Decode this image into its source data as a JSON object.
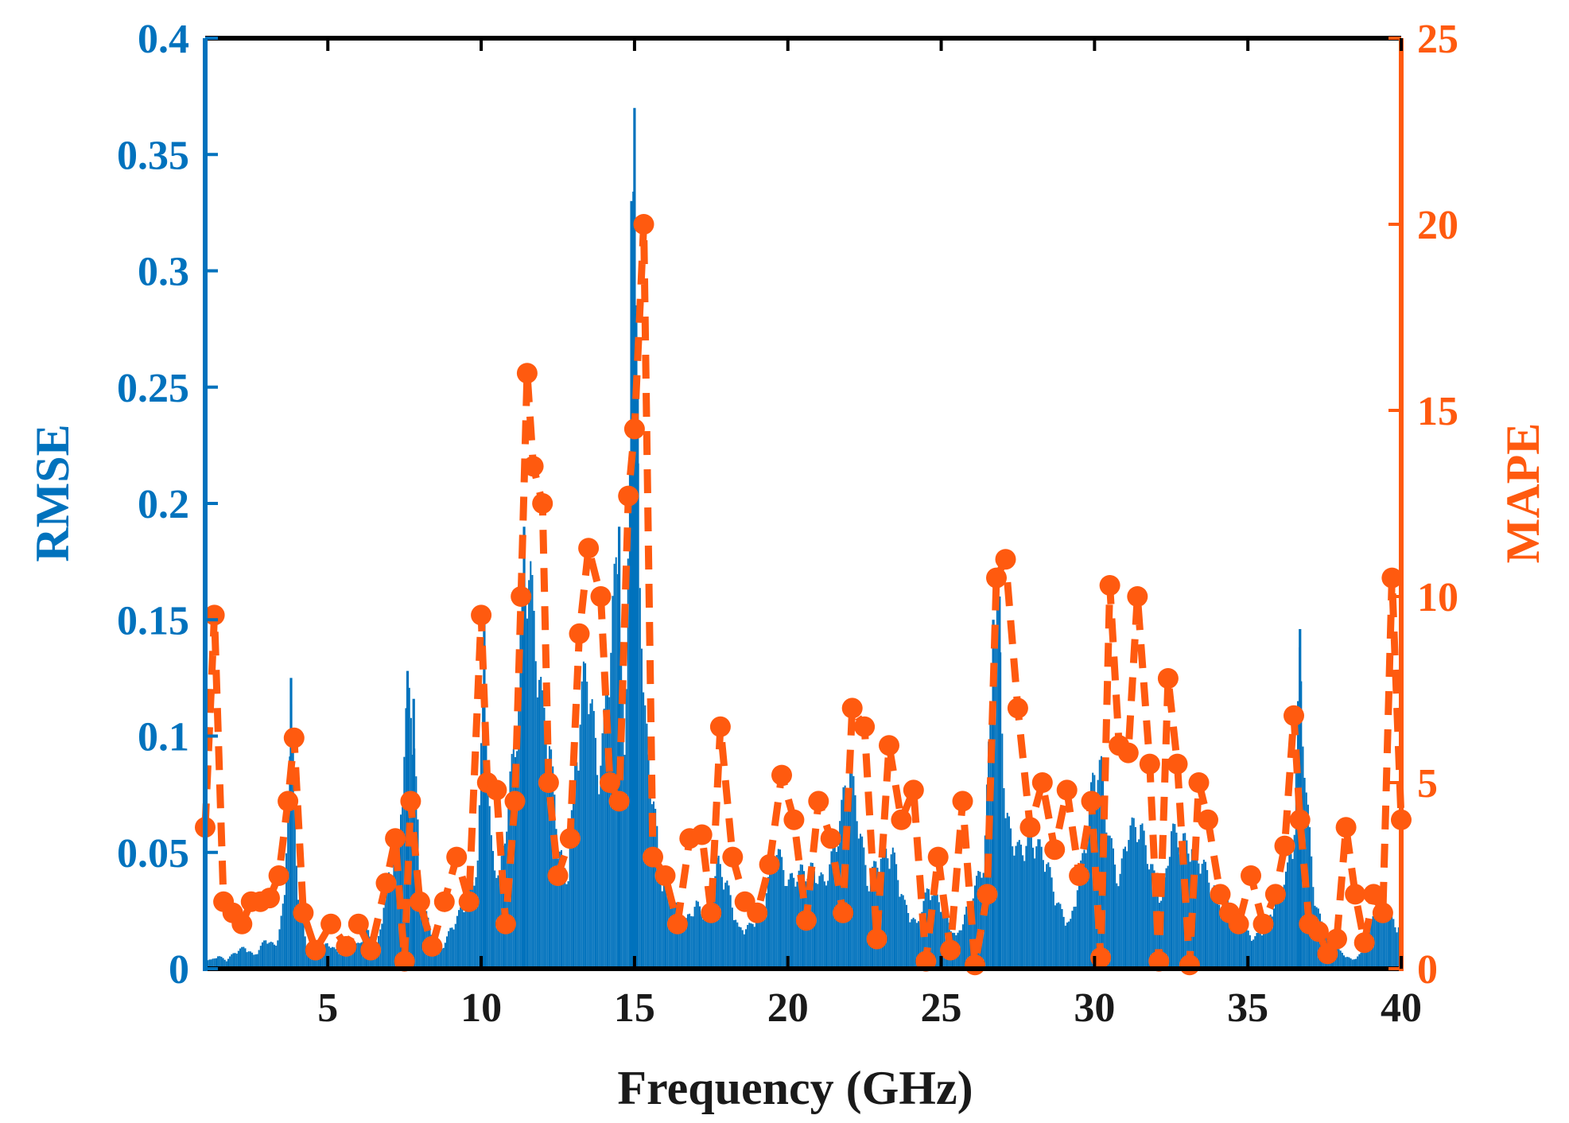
{
  "chart_data": {
    "type": "bar",
    "xlabel": "Frequency (GHz)",
    "ylabel": "RMSE",
    "y2label": "MAPE",
    "xlim": [
      1,
      40
    ],
    "ylim": [
      0,
      0.4
    ],
    "y2lim": [
      0,
      25
    ],
    "xticks": [
      "5",
      "10",
      "15",
      "20",
      "25",
      "30",
      "35",
      "40"
    ],
    "xtick_values": [
      5,
      10,
      15,
      20,
      25,
      30,
      35,
      40
    ],
    "yticks": [
      "0",
      "0.05",
      "0.1",
      "0.15",
      "0.2",
      "0.25",
      "0.3",
      "0.35",
      "0.4"
    ],
    "ytick_values": [
      0,
      0.05,
      0.1,
      0.15,
      0.2,
      0.25,
      0.3,
      0.35,
      0.4
    ],
    "y2ticks": [
      "0",
      "5",
      "10",
      "15",
      "20",
      "25"
    ],
    "y2tick_values": [
      0,
      5,
      10,
      15,
      20,
      25
    ],
    "grid": false,
    "series": [
      {
        "name": "RMSE",
        "kind": "bar",
        "axis": "left",
        "color": "#0072BD",
        "x": [
          1.2,
          1.4,
          1.7,
          2.0,
          2.3,
          2.6,
          3.0,
          3.3,
          3.6,
          3.8,
          4.0,
          4.3,
          4.6,
          5.0,
          5.3,
          5.6,
          6.0,
          6.3,
          6.6,
          7.0,
          7.3,
          7.6,
          7.8,
          8.0,
          8.3,
          8.6,
          9.0,
          9.3,
          9.6,
          9.9,
          10.1,
          10.3,
          10.6,
          10.9,
          11.2,
          11.4,
          11.6,
          11.8,
          12.0,
          12.2,
          12.5,
          12.8,
          13.0,
          13.3,
          13.5,
          13.8,
          14.0,
          14.3,
          14.5,
          14.7,
          14.9,
          15.0,
          15.1,
          15.3,
          15.6,
          15.9,
          16.2,
          16.6,
          17.0,
          17.4,
          17.7,
          18.0,
          18.4,
          18.8,
          19.2,
          19.6,
          20.0,
          20.4,
          20.8,
          21.2,
          21.6,
          22.0,
          22.3,
          22.6,
          23.0,
          23.4,
          23.8,
          24.2,
          24.6,
          25.0,
          25.5,
          26.0,
          26.4,
          26.7,
          26.9,
          27.1,
          27.5,
          28.0,
          28.4,
          28.8,
          29.2,
          29.6,
          30.0,
          30.2,
          30.5,
          30.8,
          31.1,
          31.5,
          31.8,
          32.2,
          32.5,
          32.8,
          33.2,
          33.5,
          33.8,
          34.1,
          34.4,
          34.8,
          35.2,
          35.6,
          36.0,
          36.3,
          36.5,
          36.7,
          36.9,
          37.2,
          37.6,
          38.0,
          38.4,
          38.8,
          39.2,
          39.5,
          39.8
        ],
        "values": [
          0.004,
          0.006,
          0.004,
          0.008,
          0.01,
          0.006,
          0.014,
          0.01,
          0.033,
          0.125,
          0.04,
          0.01,
          0.006,
          0.012,
          0.008,
          0.006,
          0.012,
          0.018,
          0.01,
          0.044,
          0.056,
          0.128,
          0.116,
          0.04,
          0.02,
          0.006,
          0.018,
          0.026,
          0.034,
          0.05,
          0.148,
          0.06,
          0.04,
          0.08,
          0.118,
          0.19,
          0.18,
          0.15,
          0.12,
          0.11,
          0.06,
          0.04,
          0.08,
          0.13,
          0.14,
          0.09,
          0.11,
          0.17,
          0.19,
          0.08,
          0.33,
          0.37,
          0.25,
          0.12,
          0.08,
          0.04,
          0.034,
          0.02,
          0.03,
          0.024,
          0.05,
          0.04,
          0.018,
          0.02,
          0.03,
          0.058,
          0.04,
          0.045,
          0.046,
          0.04,
          0.06,
          0.095,
          0.07,
          0.04,
          0.052,
          0.055,
          0.03,
          0.02,
          0.038,
          0.03,
          0.014,
          0.034,
          0.05,
          0.15,
          0.16,
          0.07,
          0.055,
          0.06,
          0.052,
          0.03,
          0.02,
          0.05,
          0.092,
          0.094,
          0.06,
          0.04,
          0.065,
          0.066,
          0.05,
          0.03,
          0.064,
          0.06,
          0.056,
          0.05,
          0.04,
          0.03,
          0.032,
          0.02,
          0.014,
          0.02,
          0.036,
          0.046,
          0.06,
          0.146,
          0.082,
          0.03,
          0.014,
          0.008,
          0.004,
          0.008,
          0.03,
          0.032,
          0.02
        ],
        "peaks": [
          [
            3.8,
            0.125
          ],
          [
            7.6,
            0.128
          ],
          [
            7.8,
            0.116
          ],
          [
            10.1,
            0.148
          ],
          [
            11.4,
            0.19
          ],
          [
            14.5,
            0.19
          ],
          [
            14.9,
            0.33
          ],
          [
            15.0,
            0.37
          ],
          [
            15.1,
            0.25
          ],
          [
            26.7,
            0.15
          ],
          [
            26.9,
            0.16
          ],
          [
            36.7,
            0.146
          ]
        ]
      },
      {
        "name": "MAPE",
        "kind": "line-dashed-markers",
        "axis": "right",
        "color": "#FF5A0F",
        "x": [
          1.0,
          1.3,
          1.6,
          1.9,
          2.2,
          2.5,
          2.8,
          3.1,
          3.4,
          3.7,
          3.9,
          4.2,
          4.6,
          5.1,
          5.6,
          6.0,
          6.4,
          6.9,
          7.2,
          7.5,
          7.7,
          8.0,
          8.4,
          8.8,
          9.2,
          9.6,
          10.0,
          10.2,
          10.5,
          10.8,
          11.1,
          11.3,
          11.5,
          11.7,
          12.0,
          12.2,
          12.5,
          12.9,
          13.2,
          13.5,
          13.9,
          14.2,
          14.5,
          14.8,
          15.0,
          15.3,
          15.6,
          16.0,
          16.4,
          16.8,
          17.2,
          17.5,
          17.8,
          18.2,
          18.6,
          19.0,
          19.4,
          19.8,
          20.2,
          20.6,
          21.0,
          21.4,
          21.8,
          22.1,
          22.5,
          22.9,
          23.3,
          23.7,
          24.1,
          24.5,
          24.9,
          25.3,
          25.7,
          26.1,
          26.5,
          26.8,
          27.1,
          27.5,
          27.9,
          28.3,
          28.7,
          29.1,
          29.5,
          29.9,
          30.2,
          30.5,
          30.8,
          31.1,
          31.4,
          31.8,
          32.1,
          32.4,
          32.7,
          33.1,
          33.4,
          33.7,
          34.1,
          34.4,
          34.7,
          35.1,
          35.5,
          35.9,
          36.2,
          36.5,
          36.7,
          37.0,
          37.3,
          37.6,
          37.9,
          38.2,
          38.5,
          38.8,
          39.1,
          39.4,
          39.7,
          40.0
        ],
        "values": [
          3.8,
          9.5,
          1.8,
          1.5,
          1.2,
          1.8,
          1.8,
          1.9,
          2.5,
          4.5,
          6.2,
          1.5,
          0.5,
          1.2,
          0.6,
          1.2,
          0.5,
          2.3,
          3.5,
          0.2,
          4.5,
          1.8,
          0.6,
          1.8,
          3.0,
          1.8,
          9.5,
          5.0,
          4.8,
          1.2,
          4.5,
          10.0,
          16.0,
          13.5,
          12.5,
          5.0,
          2.5,
          3.5,
          9.0,
          11.3,
          10.0,
          5.0,
          4.5,
          12.7,
          14.5,
          20.0,
          3.0,
          2.5,
          1.2,
          3.5,
          3.6,
          1.5,
          6.5,
          3.0,
          1.8,
          1.5,
          2.8,
          5.2,
          4.0,
          1.3,
          4.5,
          3.5,
          1.5,
          7.0,
          6.5,
          0.8,
          6.0,
          4.0,
          4.8,
          0.2,
          3.0,
          0.5,
          4.5,
          0.1,
          2.0,
          10.5,
          11.0,
          7.0,
          3.8,
          5.0,
          3.2,
          4.8,
          2.5,
          4.5,
          0.3,
          10.3,
          6.0,
          5.8,
          10.0,
          5.5,
          0.2,
          7.8,
          5.5,
          0.1,
          5.0,
          4.0,
          2.0,
          1.5,
          1.2,
          2.5,
          1.2,
          2.0,
          3.3,
          6.8,
          4.0,
          1.2,
          1.0,
          0.4,
          0.8,
          3.8,
          2.0,
          0.7,
          2.0,
          1.5,
          10.5,
          4.0
        ]
      }
    ]
  }
}
